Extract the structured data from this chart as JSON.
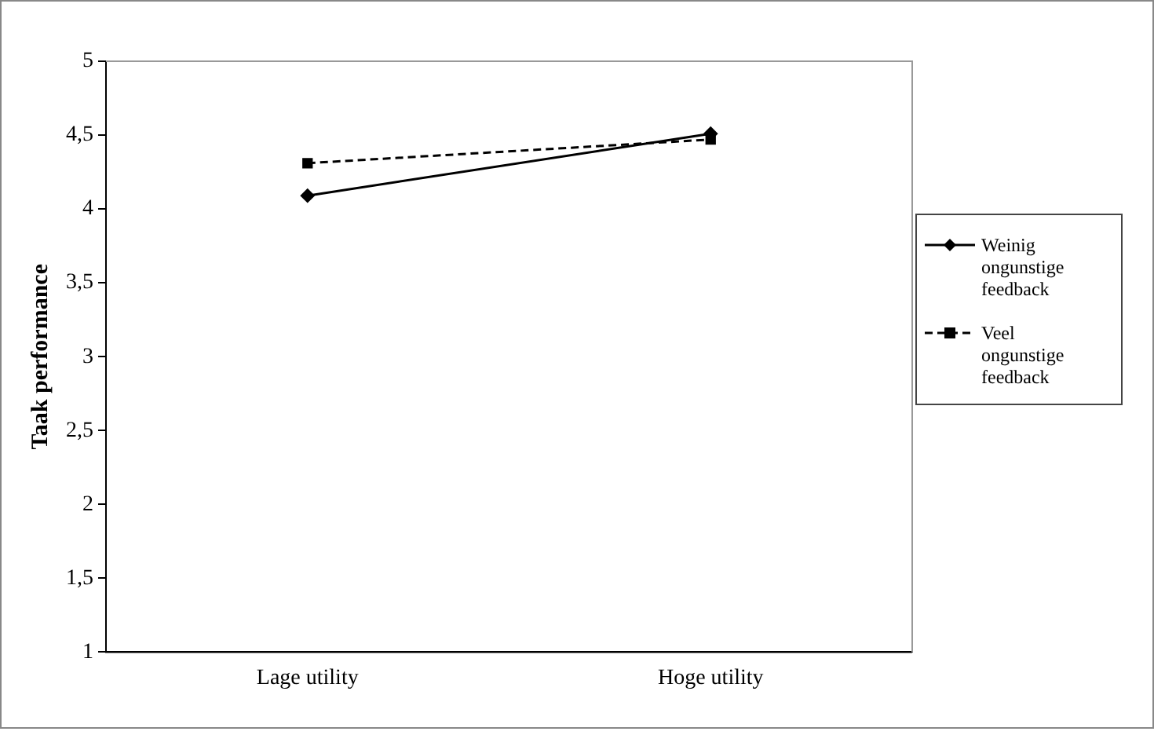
{
  "chart_data": {
    "type": "line",
    "ylabel": "Taak performance",
    "categories": [
      "Lage utility",
      "Hoge utility"
    ],
    "series": [
      {
        "name": "Weinig ongunstige feedback",
        "color": "#000000",
        "values": [
          4.09,
          4.51
        ],
        "marker": "diamond",
        "line_style": "solid"
      },
      {
        "name": "Veel ongunstige feedback",
        "color": "#000000",
        "values": [
          4.31,
          4.47
        ],
        "marker": "square",
        "line_style": "dashed"
      }
    ],
    "ylim": [
      1,
      5
    ],
    "yticks": [
      1,
      {
        "value": 1.5,
        "label": "1,5"
      },
      2,
      {
        "value": 2.5,
        "label": "2,5"
      },
      3,
      {
        "value": 3.5,
        "label": "3,5"
      },
      4,
      {
        "value": 4.5,
        "label": "4,5"
      },
      5
    ],
    "grid": false,
    "legend": "right"
  }
}
